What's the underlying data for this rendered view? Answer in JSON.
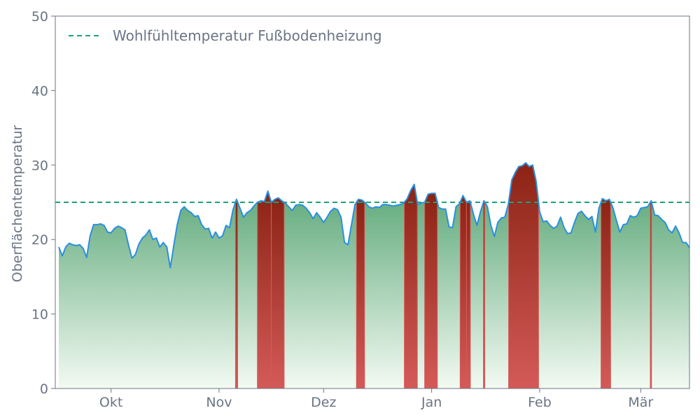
{
  "chart_data": {
    "type": "area",
    "title": "",
    "xlabel": "",
    "ylabel": "Oberflächentemperatur",
    "ylim": [
      0,
      50
    ],
    "y_ticks": [
      0,
      10,
      20,
      30,
      40,
      50
    ],
    "x_range": [
      "2023-09-15",
      "2024-03-15"
    ],
    "x_ticks": [
      {
        "date": "2023-10-01",
        "label": "Okt"
      },
      {
        "date": "2023-11-01",
        "label": "Nov"
      },
      {
        "date": "2023-12-01",
        "label": "Dez"
      },
      {
        "date": "2024-01-01",
        "label": "Jan"
      },
      {
        "date": "2024-02-01",
        "label": "Feb"
      },
      {
        "date": "2024-03-01",
        "label": "Mär"
      }
    ],
    "threshold": {
      "name": "Wohlfühltemperatur Fußbodenheizung",
      "value": 25,
      "color": "#1aa37a"
    },
    "grid": false,
    "legend_position": "top-left",
    "colors": {
      "line": "#2a8fe0",
      "fill_top": "#4a9e6a",
      "fill_bottom": "#f3faf2",
      "exceed_top": "#8b2314",
      "exceed_bottom": "#d45a58",
      "axis": "#6b7585"
    },
    "series": [
      {
        "start_date": "2023-09-16",
        "values": [
          19.0,
          17.8,
          19.0,
          19.5,
          19.3,
          19.2,
          19.3,
          18.8,
          17.6,
          20.5,
          22.0,
          22.0,
          22.1,
          21.9,
          21.0,
          20.9,
          21.5,
          21.8,
          21.6,
          21.3,
          19.3,
          17.5,
          18.0,
          19.4,
          20.2,
          20.6,
          21.3,
          20.0,
          20.2,
          19.0,
          19.6,
          19.0,
          16.2,
          19.2,
          22.0,
          23.9,
          24.4,
          23.9,
          23.6,
          23.1,
          23.2,
          22.0,
          21.4,
          21.5,
          20.2,
          21.0,
          20.2,
          20.5,
          21.9,
          21.6,
          24.0,
          25.4,
          24.2,
          23.0,
          23.6,
          23.9,
          24.5,
          25.0,
          25.2,
          25.1,
          26.5,
          25.0,
          25.4,
          25.6,
          25.2,
          24.9,
          24.4,
          23.9,
          24.6,
          24.7,
          24.6,
          24.2,
          23.6,
          22.8,
          23.6,
          23.0,
          22.3,
          23.0,
          23.8,
          24.2,
          24.0,
          23.0,
          19.6,
          19.3,
          22.0,
          24.7,
          25.4,
          25.3,
          24.9,
          24.4,
          24.2,
          24.4,
          24.3,
          24.7,
          24.7,
          24.6,
          24.5,
          24.6,
          24.7,
          24.9,
          25.5,
          26.6,
          27.4,
          24.7,
          24.9,
          25.0,
          26.1,
          26.2,
          26.2,
          24.3,
          24.1,
          24.1,
          21.7,
          21.6,
          24.4,
          24.8,
          25.9,
          25.0,
          25.2,
          23.4,
          21.9,
          23.7,
          25.2,
          24.4,
          21.9,
          20.4,
          22.3,
          22.9,
          23.0,
          24.7,
          28.0,
          29.0,
          29.8,
          29.9,
          30.3,
          29.8,
          30.0,
          27.8,
          23.7,
          22.4,
          22.5,
          21.9,
          21.5,
          21.8,
          23.0,
          21.6,
          20.8,
          20.9,
          22.3,
          23.5,
          23.8,
          23.2,
          22.7,
          23.1,
          21.0,
          24.2,
          25.5,
          25.2,
          25.4,
          24.3,
          22.6,
          21.0,
          22.0,
          22.1,
          23.2,
          23.0,
          23.2,
          24.2,
          24.3,
          24.4,
          25.2,
          23.3,
          23.2,
          22.7,
          22.3,
          21.3,
          20.9,
          21.8,
          20.9,
          19.6,
          19.6,
          18.9
        ]
      }
    ]
  }
}
